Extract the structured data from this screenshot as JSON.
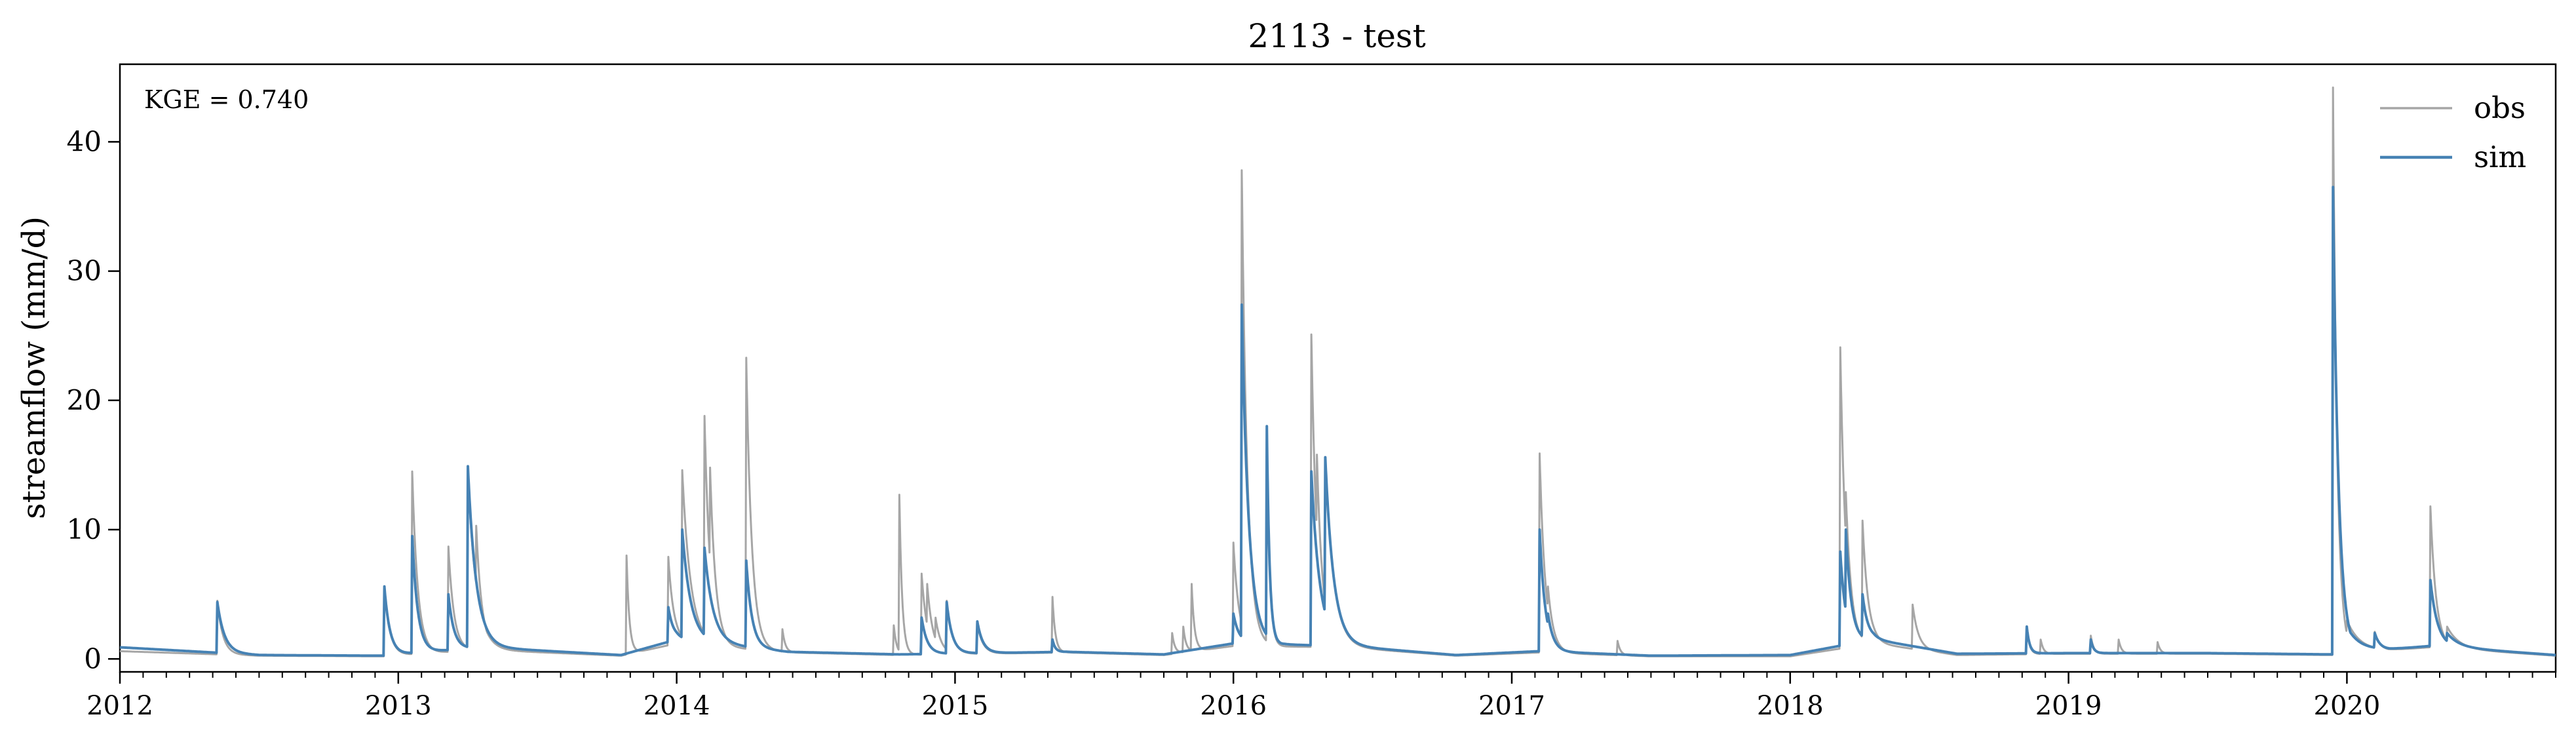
{
  "chart_data": {
    "type": "line",
    "title": "2113 - test",
    "xlabel": "",
    "ylabel": "streamflow (mm/d)",
    "annotation": "KGE = 0.740",
    "x_range": [
      2012.0,
      2020.75
    ],
    "ylim": [
      -1.0,
      46.0
    ],
    "x_ticks": [
      2012,
      2013,
      2014,
      2015,
      2016,
      2017,
      2018,
      2019,
      2020
    ],
    "x_tick_labels": [
      "2012",
      "2013",
      "2014",
      "2015",
      "2016",
      "2017",
      "2018",
      "2019",
      "2020"
    ],
    "y_ticks": [
      0,
      10,
      20,
      30,
      40
    ],
    "y_tick_labels": [
      "0",
      "10",
      "20",
      "30",
      "40"
    ],
    "grid": false,
    "legend": "top-right",
    "series": [
      {
        "name": "obs",
        "color": "#a6a6a6",
        "baseflow": [
          [
            2012.0,
            0.6
          ],
          [
            2012.5,
            0.25
          ],
          [
            2012.95,
            0.2
          ],
          [
            2013.3,
            0.7
          ],
          [
            2013.8,
            0.25
          ],
          [
            2014.0,
            1.2
          ],
          [
            2014.4,
            0.5
          ],
          [
            2014.8,
            0.3
          ],
          [
            2015.4,
            0.5
          ],
          [
            2015.75,
            0.3
          ],
          [
            2016.0,
            1.0
          ],
          [
            2016.4,
            0.9
          ],
          [
            2016.8,
            0.25
          ],
          [
            2017.1,
            0.5
          ],
          [
            2017.5,
            0.2
          ],
          [
            2018.0,
            0.2
          ],
          [
            2018.3,
            1.2
          ],
          [
            2018.6,
            0.3
          ],
          [
            2019.0,
            0.4
          ],
          [
            2019.5,
            0.4
          ],
          [
            2019.95,
            0.3
          ],
          [
            2020.3,
            0.9
          ],
          [
            2020.75,
            0.25
          ]
        ],
        "events": [
          [
            2012.35,
            4.5,
            0.02
          ],
          [
            2012.95,
            5.5,
            0.02
          ],
          [
            2013.05,
            14.5,
            0.02
          ],
          [
            2013.18,
            8.7,
            0.02
          ],
          [
            2013.25,
            14.5,
            0.03
          ],
          [
            2013.28,
            10.3,
            0.02
          ],
          [
            2013.82,
            8.0,
            0.01
          ],
          [
            2013.97,
            7.9,
            0.02
          ],
          [
            2014.02,
            14.6,
            0.03
          ],
          [
            2014.1,
            18.8,
            0.02
          ],
          [
            2014.12,
            14.8,
            0.02
          ],
          [
            2014.25,
            23.3,
            0.02
          ],
          [
            2014.38,
            2.3,
            0.01
          ],
          [
            2014.78,
            2.6,
            0.01
          ],
          [
            2014.8,
            12.7,
            0.01
          ],
          [
            2014.88,
            6.6,
            0.02
          ],
          [
            2014.9,
            5.8,
            0.02
          ],
          [
            2014.93,
            3.2,
            0.02
          ],
          [
            2014.97,
            4.5,
            0.02
          ],
          [
            2015.08,
            2.7,
            0.02
          ],
          [
            2015.35,
            4.8,
            0.01
          ],
          [
            2015.78,
            2.0,
            0.01
          ],
          [
            2015.82,
            2.5,
            0.01
          ],
          [
            2015.85,
            5.8,
            0.01
          ],
          [
            2016.0,
            9.0,
            0.02
          ],
          [
            2016.03,
            37.8,
            0.02
          ],
          [
            2016.12,
            18.0,
            0.01
          ],
          [
            2016.28,
            25.1,
            0.02
          ],
          [
            2016.3,
            15.8,
            0.02
          ],
          [
            2016.33,
            15.5,
            0.03
          ],
          [
            2017.1,
            15.9,
            0.02
          ],
          [
            2017.13,
            5.6,
            0.02
          ],
          [
            2017.38,
            1.4,
            0.01
          ],
          [
            2018.18,
            24.1,
            0.02
          ],
          [
            2018.2,
            12.9,
            0.02
          ],
          [
            2018.26,
            10.7,
            0.02
          ],
          [
            2018.44,
            4.2,
            0.02
          ],
          [
            2018.85,
            2.4,
            0.01
          ],
          [
            2018.9,
            1.5,
            0.01
          ],
          [
            2019.08,
            1.8,
            0.01
          ],
          [
            2019.18,
            1.5,
            0.01
          ],
          [
            2019.32,
            1.3,
            0.01
          ],
          [
            2019.95,
            44.2,
            0.015
          ],
          [
            2020.0,
            3.0,
            0.05
          ],
          [
            2020.1,
            2.1,
            0.02
          ],
          [
            2020.3,
            11.8,
            0.02
          ],
          [
            2020.36,
            2.5,
            0.04
          ]
        ]
      },
      {
        "name": "sim",
        "color": "#4682b4",
        "baseflow": [
          [
            2012.0,
            0.9
          ],
          [
            2012.5,
            0.3
          ],
          [
            2012.95,
            0.25
          ],
          [
            2013.3,
            0.9
          ],
          [
            2013.8,
            0.3
          ],
          [
            2014.0,
            1.5
          ],
          [
            2014.4,
            0.55
          ],
          [
            2014.8,
            0.35
          ],
          [
            2015.4,
            0.55
          ],
          [
            2015.75,
            0.35
          ],
          [
            2016.0,
            1.2
          ],
          [
            2016.4,
            1.0
          ],
          [
            2016.8,
            0.3
          ],
          [
            2017.1,
            0.6
          ],
          [
            2017.5,
            0.25
          ],
          [
            2018.0,
            0.3
          ],
          [
            2018.3,
            1.5
          ],
          [
            2018.6,
            0.4
          ],
          [
            2019.0,
            0.45
          ],
          [
            2019.5,
            0.45
          ],
          [
            2019.95,
            0.35
          ],
          [
            2020.3,
            1.0
          ],
          [
            2020.75,
            0.3
          ]
        ],
        "events": [
          [
            2012.35,
            4.4,
            0.025
          ],
          [
            2012.95,
            5.6,
            0.02
          ],
          [
            2013.05,
            9.5,
            0.02
          ],
          [
            2013.18,
            5.0,
            0.02
          ],
          [
            2013.25,
            14.9,
            0.03
          ],
          [
            2013.28,
            4.0,
            0.02
          ],
          [
            2013.97,
            4.0,
            0.02
          ],
          [
            2014.02,
            10.0,
            0.03
          ],
          [
            2014.1,
            8.6,
            0.03
          ],
          [
            2014.25,
            7.6,
            0.02
          ],
          [
            2014.88,
            3.2,
            0.02
          ],
          [
            2014.97,
            4.4,
            0.02
          ],
          [
            2015.08,
            2.9,
            0.02
          ],
          [
            2015.35,
            1.5,
            0.01
          ],
          [
            2016.0,
            3.5,
            0.02
          ],
          [
            2016.03,
            27.4,
            0.025
          ],
          [
            2016.12,
            18.0,
            0.01
          ],
          [
            2016.28,
            14.5,
            0.03
          ],
          [
            2016.33,
            15.6,
            0.03
          ],
          [
            2017.1,
            10.0,
            0.02
          ],
          [
            2017.13,
            3.5,
            0.02
          ],
          [
            2018.18,
            8.3,
            0.02
          ],
          [
            2018.2,
            10.0,
            0.02
          ],
          [
            2018.26,
            5.0,
            0.02
          ],
          [
            2018.85,
            2.5,
            0.01
          ],
          [
            2019.08,
            1.5,
            0.01
          ],
          [
            2019.95,
            36.5,
            0.02
          ],
          [
            2020.0,
            2.5,
            0.05
          ],
          [
            2020.1,
            2.0,
            0.02
          ],
          [
            2020.3,
            6.1,
            0.025
          ],
          [
            2020.36,
            2.0,
            0.04
          ]
        ]
      }
    ]
  }
}
